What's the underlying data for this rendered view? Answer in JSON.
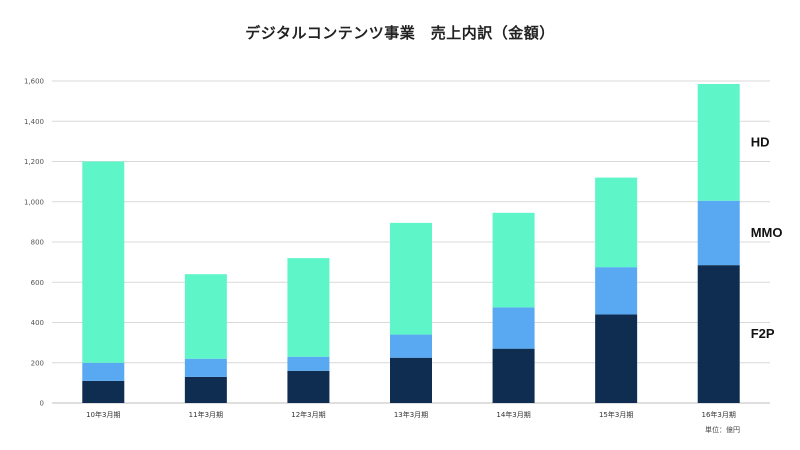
{
  "chart_data": {
    "type": "bar",
    "stacked": true,
    "title": "デジタルコンテンツ事業　売上内訳（金額）",
    "categories": [
      "10年3月期",
      "11年3月期",
      "12年3月期",
      "13年3月期",
      "14年3月期",
      "15年3月期",
      "16年3月期"
    ],
    "series": [
      {
        "name": "F2P",
        "color": "#0f2d50",
        "values": [
          110,
          130,
          160,
          225,
          270,
          440,
          685
        ]
      },
      {
        "name": "MMO",
        "color": "#58a8f2",
        "values": [
          90,
          90,
          70,
          115,
          205,
          235,
          320
        ]
      },
      {
        "name": "HD",
        "color": "#5ef5c8",
        "values": [
          1000,
          420,
          490,
          555,
          470,
          445,
          580
        ]
      }
    ],
    "ylim": [
      0,
      1600
    ],
    "yticks": [
      0,
      200,
      400,
      600,
      800,
      1000,
      1200,
      1400,
      1600
    ],
    "ytick_labels": [
      "0",
      "200",
      "400",
      "600",
      "800",
      "1,000",
      "1,200",
      "1,400",
      "1,600"
    ],
    "grid": true,
    "unit": "単位：億円",
    "xlabel": "",
    "ylabel": ""
  }
}
